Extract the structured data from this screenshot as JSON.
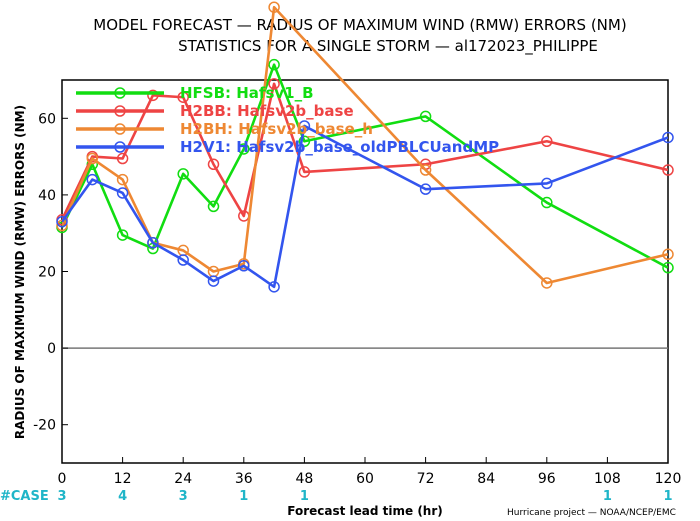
{
  "chart_data": {
    "type": "line",
    "title": "MODEL FORECAST — RADIUS OF MAXIMUM WIND (RMW) ERRORS (NM)",
    "subtitle": "STATISTICS FOR A SINGLE STORM — al172023_PHILIPPE",
    "xlabel": "Forecast lead time (hr)",
    "ylabel": "RADIUS OF MAXIMUM WIND (RMW) ERRORS (NM)",
    "xlim": [
      0,
      120
    ],
    "ylim": [
      -30,
      70
    ],
    "xticks": [
      0,
      12,
      24,
      36,
      48,
      60,
      72,
      84,
      96,
      108,
      120
    ],
    "yticks": [
      -20,
      0,
      20,
      40,
      60
    ],
    "legend_position": "top-left",
    "series": [
      {
        "name": "HFSB: Hafsv1_B",
        "color": "#11dd11",
        "points": [
          [
            0,
            31.5
          ],
          [
            6,
            48
          ],
          [
            12,
            29.5
          ],
          [
            18,
            26
          ],
          [
            24,
            45.5
          ],
          [
            30,
            37
          ],
          [
            36,
            52
          ],
          [
            42,
            74
          ],
          [
            48,
            54
          ],
          [
            72,
            60.5
          ],
          [
            96,
            38
          ],
          [
            120,
            21
          ]
        ]
      },
      {
        "name": "H2BB: Hafsv2b_base",
        "color": "#ee4444",
        "points": [
          [
            0,
            33.5
          ],
          [
            6,
            50
          ],
          [
            12,
            49.5
          ],
          [
            18,
            66
          ],
          [
            24,
            65.5
          ],
          [
            30,
            48
          ],
          [
            36,
            34.5
          ],
          [
            42,
            69
          ],
          [
            48,
            46
          ],
          [
            72,
            48
          ],
          [
            96,
            54
          ],
          [
            120,
            46.5
          ]
        ]
      },
      {
        "name": "H2BH: Hafsv2b_base_h",
        "color": "#ee8833",
        "points": [
          [
            0,
            32
          ],
          [
            6,
            49.5
          ],
          [
            12,
            44
          ],
          [
            18,
            27.5
          ],
          [
            24,
            25.5
          ],
          [
            30,
            20
          ],
          [
            36,
            22
          ],
          [
            42,
            89
          ],
          [
            72,
            46.5
          ],
          [
            96,
            17
          ],
          [
            120,
            24.5
          ]
        ]
      },
      {
        "name": "H2V1: Hafsv2b_base_oldPBLCUandMP",
        "color": "#3355ee",
        "points": [
          [
            0,
            33
          ],
          [
            6,
            44
          ],
          [
            12,
            40.5
          ],
          [
            18,
            27.5
          ],
          [
            24,
            23
          ],
          [
            30,
            17.5
          ],
          [
            36,
            21.5
          ],
          [
            42,
            16
          ],
          [
            48,
            58
          ],
          [
            72,
            41.5
          ],
          [
            96,
            43
          ],
          [
            120,
            55
          ]
        ]
      }
    ],
    "case_counts": {
      "label": "#CASE",
      "items": [
        {
          "x": 0,
          "count": "3"
        },
        {
          "x": 12,
          "count": "4"
        },
        {
          "x": 24,
          "count": "3"
        },
        {
          "x": 36,
          "count": "1"
        },
        {
          "x": 48,
          "count": "1"
        },
        {
          "x": 108,
          "count": "1"
        },
        {
          "x": 120,
          "count": "1"
        }
      ]
    },
    "zero_line": true,
    "grid": false
  },
  "footer": {
    "credit": "Hurricane project — NOAA/NCEP/EMC"
  }
}
